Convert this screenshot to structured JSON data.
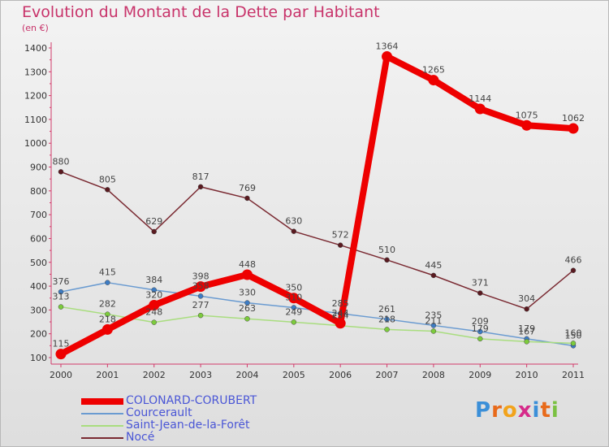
{
  "chart_data": {
    "type": "line",
    "title": "Evolution du Montant de la Dette par Habitant",
    "subtitle": "(en €)",
    "xlabel": "",
    "ylabel": "",
    "ylim": [
      100,
      1400
    ],
    "yticks": [
      "100",
      "200",
      "300",
      "400",
      "500",
      "600",
      "700",
      "800",
      "900",
      "1000",
      "1100",
      "1200",
      "1300",
      "1400"
    ],
    "categories": [
      "2000",
      "2001",
      "2002",
      "2003",
      "2004",
      "2005",
      "2006",
      "2007",
      "2008",
      "2009",
      "2010",
      "2011"
    ],
    "grid": false,
    "legend_position": "bottom-left",
    "series": [
      {
        "name": "Nocé",
        "color": "#7a2a32",
        "marker": "#5a1a20",
        "values": [
          880,
          805,
          629,
          817,
          769,
          630,
          572,
          510,
          445,
          371,
          304,
          466
        ],
        "labels": [
          "880",
          "805",
          "629",
          "817",
          "769",
          "630",
          "572",
          "510",
          "445",
          "371",
          "304",
          "466"
        ]
      },
      {
        "name": "Courcerault",
        "color": "#6a9bd1",
        "marker": "#3d7cc4",
        "values": [
          376,
          415,
          384,
          358,
          330,
          310,
          285,
          261,
          235,
          209,
          179,
          150
        ],
        "labels": [
          "376",
          "415",
          "384",
          "358",
          "330",
          "310",
          "285",
          "261",
          "235",
          "209",
          "179",
          "150"
        ]
      },
      {
        "name": "Saint-Jean-de-la-Forêt",
        "color": "#a9dd7f",
        "marker": "#7ccb3c",
        "values": [
          313,
          282,
          248,
          277,
          263,
          249,
          234,
          218,
          211,
          179,
          167,
          160
        ],
        "labels": [
          "313",
          "282",
          "248",
          "277",
          "263",
          "249",
          "234",
          "218",
          "211",
          "179",
          "167",
          "160"
        ]
      },
      {
        "name": "COLONARD-CORUBERT",
        "color": "#ee0000",
        "marker": "#ee0000",
        "values": [
          115,
          218,
          320,
          398,
          448,
          350,
          244,
          1364,
          1265,
          1144,
          1075,
          1062
        ],
        "labels": [
          "115",
          "218",
          "320",
          "398",
          "448",
          "350",
          "244",
          "1364",
          "1265",
          "1144",
          "1075",
          "1062"
        ]
      }
    ]
  },
  "legend": [
    {
      "label": "COLONARD-CORUBERT",
      "color": "#ee0000",
      "thick": true
    },
    {
      "label": "Courcerault",
      "color": "#6a9bd1",
      "thick": false
    },
    {
      "label": "Saint-Jean-de-la-Forêt",
      "color": "#a9dd7f",
      "thick": false
    },
    {
      "label": "Nocé",
      "color": "#7a2a32",
      "thick": false
    }
  ],
  "logo": {
    "letters": [
      "P",
      "r",
      "o",
      "x",
      "i",
      "t",
      "i"
    ],
    "colors": [
      "#3b8fd8",
      "#e86a1a",
      "#f2a31b",
      "#d62b8a",
      "#3b8fd8",
      "#e86a1a",
      "#7ac142"
    ]
  }
}
